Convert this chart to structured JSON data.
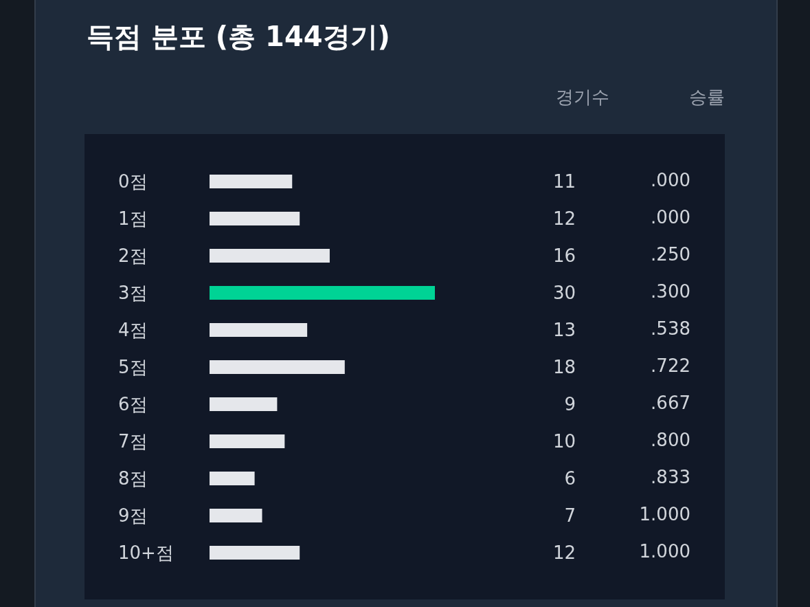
{
  "chart_data": {
    "type": "bar",
    "orientation": "horizontal",
    "title": "득점 분포 (총 144경기)",
    "categories": [
      "0점",
      "1점",
      "2점",
      "3점",
      "4점",
      "5점",
      "6점",
      "7점",
      "8점",
      "9점",
      "10+점"
    ],
    "xlim": [
      0,
      30
    ],
    "tick_labels": "y",
    "data_labels": true,
    "series": [
      {
        "name": "경기수",
        "values": [
          11,
          12,
          16,
          30,
          13,
          18,
          9,
          10,
          6,
          7,
          12
        ],
        "colors": [
          "#e5e7eb",
          "#e5e7eb",
          "#e5e7eb",
          "#00d395",
          "#e5e7eb",
          "#e5e7eb",
          "#e5e7eb",
          "#e5e7eb",
          "#e5e7eb",
          "#e5e7eb",
          "#e5e7eb"
        ]
      }
    ],
    "annotations": [
      "승률",
      ".000",
      ".000",
      ".250",
      ".300",
      ".538",
      ".722",
      ".667",
      ".800",
      ".833",
      "1.000",
      "1.000"
    ]
  }
}
